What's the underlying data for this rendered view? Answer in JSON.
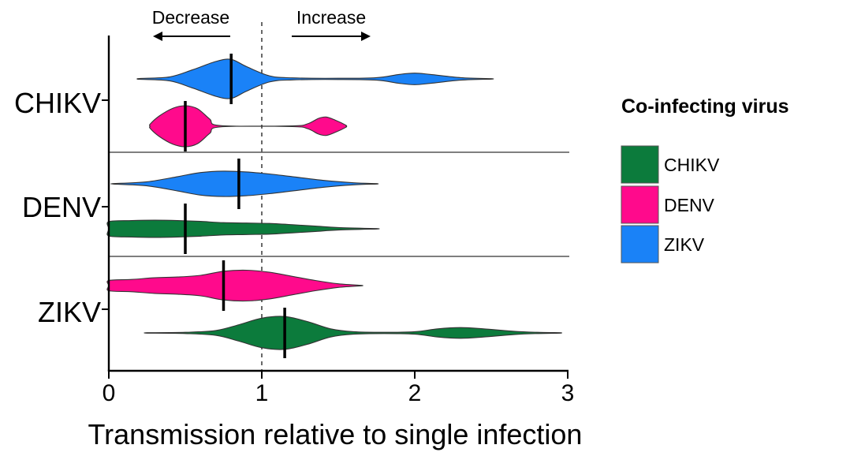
{
  "chart_data": {
    "type": "violin",
    "xlabel": "Transmission relative to single infection",
    "xlim": [
      0,
      3
    ],
    "x_ticks": [
      "0",
      "1",
      "2",
      "3"
    ],
    "reference_line_x": 1,
    "direction_labels": {
      "decrease": "Decrease",
      "increase": "Increase"
    },
    "legend": {
      "title": "Co-infecting virus",
      "placement": "right",
      "entries": [
        {
          "label": "CHIKV",
          "color": "#0c7b3c"
        },
        {
          "label": "DENV",
          "color": "#ff0a8c"
        },
        {
          "label": "ZIKV",
          "color": "#1a82f7"
        }
      ]
    },
    "groups": [
      {
        "label": "CHIKV",
        "violins": [
          {
            "coinfecting": "ZIKV",
            "median": 0.8,
            "min": 0.2,
            "max": 2.5,
            "density": [
              [
                0.2,
                0.02
              ],
              [
                0.4,
                0.1
              ],
              [
                0.55,
                0.45
              ],
              [
                0.7,
                0.85
              ],
              [
                0.8,
                0.95
              ],
              [
                0.9,
                0.6
              ],
              [
                1.05,
                0.15
              ],
              [
                1.2,
                0.05
              ],
              [
                1.5,
                0.03
              ],
              [
                1.75,
                0.06
              ],
              [
                1.9,
                0.22
              ],
              [
                2.0,
                0.28
              ],
              [
                2.1,
                0.22
              ],
              [
                2.3,
                0.06
              ],
              [
                2.5,
                0.01
              ]
            ]
          },
          {
            "coinfecting": "DENV",
            "median": 0.5,
            "min": 0.27,
            "max": 1.55,
            "density": [
              [
                0.27,
                0.1
              ],
              [
                0.33,
                0.5
              ],
              [
                0.42,
                0.88
              ],
              [
                0.5,
                1.0
              ],
              [
                0.58,
                0.85
              ],
              [
                0.66,
                0.35
              ],
              [
                0.73,
                0.03
              ],
              [
                1.2,
                0.02
              ],
              [
                1.3,
                0.12
              ],
              [
                1.37,
                0.38
              ],
              [
                1.42,
                0.45
              ],
              [
                1.48,
                0.3
              ],
              [
                1.55,
                0.05
              ]
            ]
          }
        ]
      },
      {
        "label": "DENV",
        "violins": [
          {
            "coinfecting": "ZIKV",
            "median": 0.85,
            "min": 0.03,
            "max": 1.75,
            "density": [
              [
                0.03,
                0.01
              ],
              [
                0.25,
                0.1
              ],
              [
                0.45,
                0.35
              ],
              [
                0.6,
                0.55
              ],
              [
                0.75,
                0.62
              ],
              [
                0.9,
                0.58
              ],
              [
                1.05,
                0.48
              ],
              [
                1.2,
                0.35
              ],
              [
                1.4,
                0.17
              ],
              [
                1.6,
                0.05
              ],
              [
                1.75,
                0.01
              ]
            ]
          },
          {
            "coinfecting": "CHIKV",
            "median": 0.5,
            "min": 0.0,
            "max": 1.75,
            "density": [
              [
                0.0,
                0.35
              ],
              [
                0.15,
                0.4
              ],
              [
                0.3,
                0.42
              ],
              [
                0.45,
                0.4
              ],
              [
                0.6,
                0.36
              ],
              [
                0.75,
                0.3
              ],
              [
                0.9,
                0.28
              ],
              [
                1.05,
                0.26
              ],
              [
                1.2,
                0.2
              ],
              [
                1.35,
                0.13
              ],
              [
                1.5,
                0.06
              ],
              [
                1.75,
                0.01
              ]
            ]
          }
        ]
      },
      {
        "label": "ZIKV",
        "violins": [
          {
            "coinfecting": "DENV",
            "median": 0.75,
            "min": 0.0,
            "max": 1.65,
            "density": [
              [
                0.0,
                0.25
              ],
              [
                0.15,
                0.3
              ],
              [
                0.3,
                0.38
              ],
              [
                0.45,
                0.42
              ],
              [
                0.6,
                0.5
              ],
              [
                0.75,
                0.7
              ],
              [
                0.9,
                0.75
              ],
              [
                1.05,
                0.65
              ],
              [
                1.2,
                0.45
              ],
              [
                1.35,
                0.25
              ],
              [
                1.5,
                0.09
              ],
              [
                1.65,
                0.01
              ]
            ]
          },
          {
            "coinfecting": "CHIKV",
            "median": 1.15,
            "min": 0.25,
            "max": 2.95,
            "density": [
              [
                0.25,
                0.01
              ],
              [
                0.5,
                0.03
              ],
              [
                0.7,
                0.12
              ],
              [
                0.85,
                0.4
              ],
              [
                1.0,
                0.72
              ],
              [
                1.15,
                0.8
              ],
              [
                1.3,
                0.55
              ],
              [
                1.45,
                0.2
              ],
              [
                1.6,
                0.06
              ],
              [
                1.8,
                0.03
              ],
              [
                2.0,
                0.06
              ],
              [
                2.15,
                0.2
              ],
              [
                2.3,
                0.26
              ],
              [
                2.45,
                0.2
              ],
              [
                2.65,
                0.08
              ],
              [
                2.8,
                0.03
              ],
              [
                2.95,
                0.01
              ]
            ]
          }
        ]
      }
    ]
  }
}
